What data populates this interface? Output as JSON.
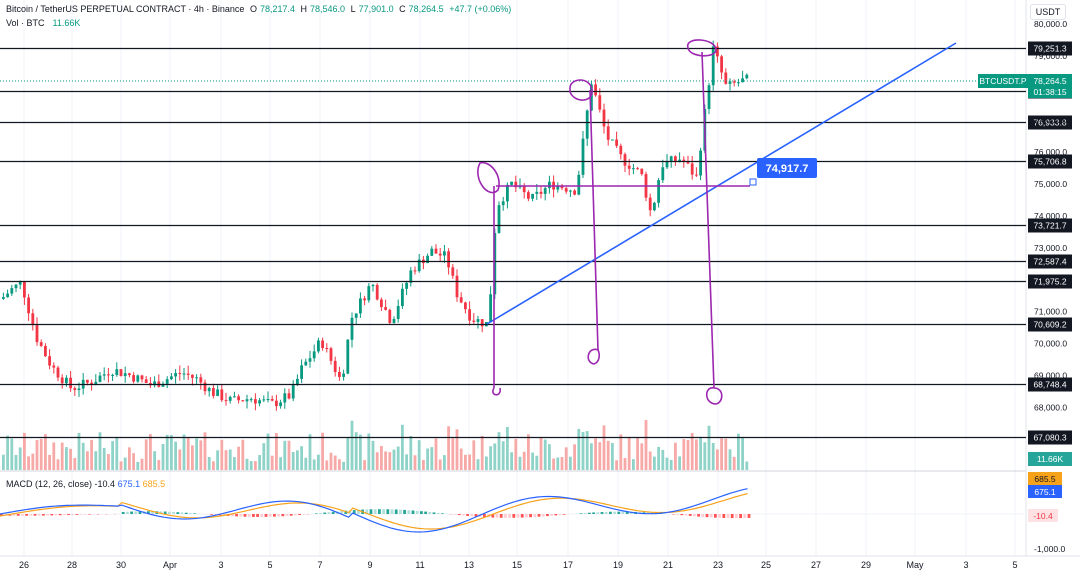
{
  "header": {
    "symbol": "Bitcoin / TetherUS PERPETUAL CONTRACT · 4h · Binance",
    "open_label": "O",
    "open": "78,217.4",
    "high_label": "H",
    "high": "78,546.0",
    "low_label": "L",
    "low": "77,901.0",
    "close_label": "C",
    "close": "78,264.5",
    "change": "+47.7 (+0.06%)",
    "currency": "USDT"
  },
  "volume": {
    "label": "Vol · BTC",
    "value": "11.66K"
  },
  "macd": {
    "label": "MACD (12, 26, close)",
    "hist": "-10.4",
    "macd": "675.1",
    "signal": "685.5"
  },
  "price_axis": {
    "ticks": [
      "80,000.0",
      "79,000.0",
      "77,000.0",
      "76,000.0",
      "75,000.0",
      "74,000.0",
      "73,000.0",
      "71,000.0",
      "70,000.0",
      "69,000.0",
      "68,000.0"
    ],
    "macd_tick": "-1,000.0"
  },
  "levels": [
    "79,251.3",
    "77,900.0",
    "76,933.8",
    "75,706.8",
    "73,721.7",
    "72,587.4",
    "71,975.2",
    "70,609.2",
    "68,748.4",
    "67,080.3"
  ],
  "current_price": {
    "symbol": "BTCUSDT.P",
    "price": "78,264.5",
    "countdown": "01:38:15"
  },
  "volume_badge": "11.66K",
  "macd_badges": {
    "signal": "685.5",
    "macd": "675.1",
    "hist": "-10.4"
  },
  "callout": "74,917.7",
  "time_axis": [
    "26",
    "28",
    "30",
    "Apr",
    "3",
    "5",
    "7",
    "9",
    "11",
    "13",
    "15",
    "17",
    "19",
    "21",
    "23",
    "25",
    "27",
    "29",
    "May",
    "3",
    "5"
  ],
  "colors": {
    "up": "#089981",
    "down": "#f23645",
    "trendline": "#2962ff",
    "annotation": "#9c27b0",
    "level_line": "#131722",
    "macd_line": "#2962ff",
    "signal_line": "#f7a21b"
  }
}
